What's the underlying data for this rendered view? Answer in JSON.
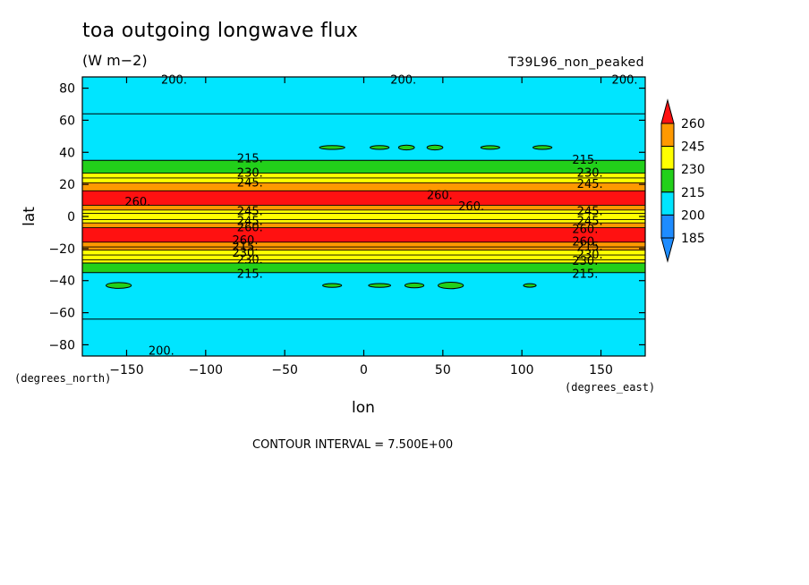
{
  "title": "toa outgoing longwave flux",
  "units": "(W m−2)",
  "run_name": "T39L96_non_peaked",
  "contour_interval": "CONTOUR INTERVAL = 7.500E+00",
  "colors": {
    "below_185": "#1e8cff",
    "c185_200": "#00e5ff",
    "c200_215": "#00e5ff",
    "c215_230": "#22d01a",
    "c230_245": "#ffff00",
    "c245_260": "#ff9900",
    "above_260": "#ff1111"
  },
  "chart_data": {
    "type": "heatmap",
    "subtype": "filled-contour",
    "title": "toa outgoing longwave flux",
    "units": "(W m−2)",
    "xlabel": "lon",
    "ylabel": "lat",
    "x_unit_label": "(degrees_east)",
    "y_unit_label": "(degrees_north)",
    "xlim": [
      -178,
      178
    ],
    "ylim": [
      -87,
      87
    ],
    "x_ticks": [
      -150,
      -100,
      -50,
      0,
      50,
      100,
      150
    ],
    "y_ticks": [
      80,
      60,
      40,
      20,
      0,
      -20,
      -40,
      -60,
      -80
    ],
    "x_tick_labels": [
      "−150",
      "−100",
      "−50",
      "0",
      "50",
      "100",
      "150"
    ],
    "y_tick_labels": [
      "80",
      "60",
      "40",
      "20",
      "0",
      "−20",
      "−40",
      "−60",
      "−80"
    ],
    "colorbar": {
      "labels": [
        "260",
        "245",
        "230",
        "215",
        "200",
        "185"
      ],
      "levels": [
        185,
        200,
        215,
        230,
        245,
        260
      ],
      "colors": [
        "#1e8cff",
        "#00e5ff",
        "#22d01a",
        "#ffff00",
        "#ff9900",
        "#ff1111"
      ]
    },
    "bands": [
      {
        "lat_top": 87,
        "lat_bottom": 35,
        "value": "200-215",
        "color": "#00e5ff"
      },
      {
        "lat_top": 35,
        "lat_bottom": 27,
        "value": "215-230",
        "color": "#22d01a"
      },
      {
        "lat_top": 27,
        "lat_bottom": 21,
        "value": "230-245",
        "color": "#ffff00"
      },
      {
        "lat_top": 21,
        "lat_bottom": 16,
        "value": "245-260",
        "color": "#ff9900"
      },
      {
        "lat_top": 16,
        "lat_bottom": 7,
        "value": ">260",
        "color": "#ff1111"
      },
      {
        "lat_top": 7,
        "lat_bottom": 4,
        "value": "245-260",
        "color": "#ff9900"
      },
      {
        "lat_top": 4,
        "lat_bottom": -4,
        "value": "230-245",
        "color": "#ffff00"
      },
      {
        "lat_top": -4,
        "lat_bottom": -7,
        "value": "245-260",
        "color": "#ff9900"
      },
      {
        "lat_top": -7,
        "lat_bottom": -16,
        "value": ">260",
        "color": "#ff1111"
      },
      {
        "lat_top": -16,
        "lat_bottom": -21,
        "value": "245-260",
        "color": "#ff9900"
      },
      {
        "lat_top": -21,
        "lat_bottom": -29,
        "value": "230-245",
        "color": "#ffff00"
      },
      {
        "lat_top": -29,
        "lat_bottom": -35,
        "value": "215-230",
        "color": "#22d01a"
      },
      {
        "lat_top": -35,
        "lat_bottom": -87,
        "value": "200-215",
        "color": "#00e5ff"
      }
    ],
    "contour_lines_lat": [
      64,
      35,
      27,
      24,
      21,
      16,
      7,
      4,
      2,
      -2,
      -4,
      -7,
      -16,
      -19,
      -21,
      -24,
      -27,
      -29,
      -35,
      -64
    ],
    "contour_labels": [
      {
        "text": "200.",
        "lon": -120,
        "lat": 85
      },
      {
        "text": "200.",
        "lon": 25,
        "lat": 85
      },
      {
        "text": "200.",
        "lon": 165,
        "lat": 85
      },
      {
        "text": "215.",
        "lon": -72,
        "lat": 36
      },
      {
        "text": "230.",
        "lon": -72,
        "lat": 27
      },
      {
        "text": "245.",
        "lon": -72,
        "lat": 21
      },
      {
        "text": "260.",
        "lon": -143,
        "lat": 9
      },
      {
        "text": "260.",
        "lon": 48,
        "lat": 13
      },
      {
        "text": "260.",
        "lon": 68,
        "lat": 6
      },
      {
        "text": "245.",
        "lon": -72,
        "lat": 3
      },
      {
        "text": "245.",
        "lon": -72,
        "lat": -3
      },
      {
        "text": "260.",
        "lon": -72,
        "lat": -7
      },
      {
        "text": "260.",
        "lon": -75,
        "lat": -15
      },
      {
        "text": "215.",
        "lon": -75,
        "lat": -19
      },
      {
        "text": "230.",
        "lon": -75,
        "lat": -23
      },
      {
        "text": "230.",
        "lon": -72,
        "lat": -27
      },
      {
        "text": "215.",
        "lon": -72,
        "lat": -36
      },
      {
        "text": "215.",
        "lon": 140,
        "lat": 35
      },
      {
        "text": "230.",
        "lon": 143,
        "lat": 27
      },
      {
        "text": "245.",
        "lon": 143,
        "lat": 20
      },
      {
        "text": "245.",
        "lon": 143,
        "lat": 3
      },
      {
        "text": "245.",
        "lon": 143,
        "lat": -3
      },
      {
        "text": "260.",
        "lon": 140,
        "lat": -8
      },
      {
        "text": "260.",
        "lon": 140,
        "lat": -16
      },
      {
        "text": "215.",
        "lon": 143,
        "lat": -19
      },
      {
        "text": "230.",
        "lon": 143,
        "lat": -24
      },
      {
        "text": "230.",
        "lon": 140,
        "lat": -28
      },
      {
        "text": "215.",
        "lon": 140,
        "lat": -36
      },
      {
        "text": "200.",
        "lon": -128,
        "lat": -84
      }
    ],
    "blobs": [
      {
        "lon": -20,
        "lat": 43,
        "r_lon": 8,
        "r_lat": 1.2
      },
      {
        "lon": 10,
        "lat": 43,
        "r_lon": 6,
        "r_lat": 1.2
      },
      {
        "lon": 27,
        "lat": 43,
        "r_lon": 5,
        "r_lat": 1.5
      },
      {
        "lon": 45,
        "lat": 43,
        "r_lon": 5,
        "r_lat": 1.5
      },
      {
        "lon": 80,
        "lat": 43,
        "r_lon": 6,
        "r_lat": 1
      },
      {
        "lon": 113,
        "lat": 43,
        "r_lon": 6,
        "r_lat": 1.2
      },
      {
        "lon": -155,
        "lat": -43,
        "r_lon": 8,
        "r_lat": 1.8
      },
      {
        "lon": -20,
        "lat": -43,
        "r_lon": 6,
        "r_lat": 1.2
      },
      {
        "lon": 10,
        "lat": -43,
        "r_lon": 7,
        "r_lat": 1.2
      },
      {
        "lon": 32,
        "lat": -43,
        "r_lon": 6,
        "r_lat": 1.5
      },
      {
        "lon": 55,
        "lat": -43,
        "r_lon": 8,
        "r_lat": 2
      },
      {
        "lon": 105,
        "lat": -43,
        "r_lon": 4,
        "r_lat": 1
      }
    ]
  }
}
